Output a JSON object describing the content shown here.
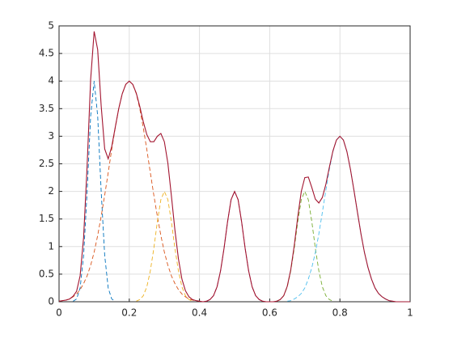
{
  "chart_data": {
    "type": "line",
    "xlim": [
      0,
      1
    ],
    "ylim": [
      0,
      5
    ],
    "xticks": [
      0,
      0.2,
      0.4,
      0.6,
      0.8,
      1
    ],
    "yticks": [
      0,
      0.5,
      1,
      1.5,
      2,
      2.5,
      3,
      3.5,
      4,
      4.5,
      5
    ],
    "grid": true,
    "series": [
      {
        "color": "#0072bd",
        "linestyle": "dashed",
        "x": [
          0.04,
          0.05,
          0.06,
          0.07,
          0.08,
          0.09,
          0.1,
          0.11,
          0.12,
          0.13,
          0.14,
          0.15,
          0.16
        ],
        "values": [
          0.01,
          0.05,
          0.25,
          0.84,
          2.0,
          3.37,
          4,
          3.37,
          2.0,
          0.84,
          0.25,
          0.05,
          0.01
        ]
      },
      {
        "color": "#d95319",
        "linestyle": "dashed",
        "x": [
          0,
          0.01,
          0.02,
          0.03,
          0.04,
          0.05,
          0.06,
          0.07,
          0.08,
          0.09,
          0.1,
          0.11,
          0.12,
          0.13,
          0.14,
          0.15,
          0.16,
          0.17,
          0.18,
          0.19,
          0.2,
          0.21,
          0.22,
          0.23,
          0.24,
          0.25,
          0.26,
          0.27,
          0.28,
          0.29,
          0.3,
          0.31,
          0.32,
          0.33,
          0.34,
          0.35,
          0.36,
          0.37,
          0.38,
          0.39,
          0.4
        ],
        "values": [
          0.01,
          0.02,
          0.03,
          0.05,
          0.09,
          0.14,
          0.22,
          0.33,
          0.47,
          0.66,
          0.9,
          1.2,
          1.55,
          1.93,
          2.34,
          2.76,
          3.15,
          3.5,
          3.77,
          3.94,
          4,
          3.94,
          3.77,
          3.5,
          3.15,
          2.76,
          2.34,
          1.93,
          1.55,
          1.2,
          0.9,
          0.66,
          0.47,
          0.33,
          0.22,
          0.14,
          0.09,
          0.05,
          0.03,
          0.02,
          0.01
        ]
      },
      {
        "color": "#edb120",
        "linestyle": "dashed",
        "x": [
          0.22,
          0.23,
          0.24,
          0.25,
          0.26,
          0.27,
          0.28,
          0.29,
          0.3,
          0.31,
          0.32,
          0.33,
          0.34,
          0.35,
          0.36,
          0.37,
          0.38
        ],
        "values": [
          0.01,
          0.04,
          0.11,
          0.27,
          0.56,
          0.97,
          1.45,
          1.85,
          2,
          1.85,
          1.45,
          0.97,
          0.56,
          0.27,
          0.11,
          0.04,
          0.01
        ]
      },
      {
        "color": "#7e2f8e",
        "linestyle": "dashed",
        "x": [
          0.42,
          0.43,
          0.44,
          0.45,
          0.46,
          0.47,
          0.48,
          0.49,
          0.5,
          0.51,
          0.52,
          0.53,
          0.54,
          0.55,
          0.56,
          0.57,
          0.58
        ],
        "values": [
          0.01,
          0.04,
          0.11,
          0.27,
          0.56,
          0.97,
          1.45,
          1.85,
          2,
          1.85,
          1.45,
          0.97,
          0.56,
          0.27,
          0.11,
          0.04,
          0.01
        ]
      },
      {
        "color": "#77ac30",
        "linestyle": "dashed",
        "x": [
          0.62,
          0.63,
          0.64,
          0.65,
          0.66,
          0.67,
          0.68,
          0.69,
          0.7,
          0.71,
          0.72,
          0.73,
          0.74,
          0.75,
          0.76,
          0.77,
          0.78
        ],
        "values": [
          0.01,
          0.04,
          0.11,
          0.27,
          0.56,
          0.97,
          1.45,
          1.85,
          2,
          1.85,
          1.45,
          0.97,
          0.56,
          0.27,
          0.11,
          0.04,
          0.01
        ]
      },
      {
        "color": "#4dbeee",
        "linestyle": "dashed",
        "x": [
          0.65,
          0.66,
          0.67,
          0.68,
          0.69,
          0.7,
          0.71,
          0.72,
          0.73,
          0.74,
          0.75,
          0.76,
          0.77,
          0.78,
          0.79,
          0.8,
          0.81,
          0.82,
          0.83,
          0.84,
          0.85,
          0.86,
          0.87,
          0.88,
          0.89,
          0.9,
          0.91,
          0.92,
          0.93,
          0.94,
          0.95
        ],
        "values": [
          0.01,
          0.02,
          0.05,
          0.09,
          0.15,
          0.25,
          0.41,
          0.62,
          0.89,
          1.23,
          1.62,
          2.02,
          2.4,
          2.72,
          2.93,
          3,
          2.93,
          2.72,
          2.4,
          2.02,
          1.62,
          1.23,
          0.89,
          0.62,
          0.41,
          0.25,
          0.15,
          0.09,
          0.05,
          0.02,
          0.01
        ]
      },
      {
        "color": "#a2142f",
        "linestyle": "solid",
        "x": [
          0,
          0.01,
          0.02,
          0.03,
          0.04,
          0.05,
          0.06,
          0.07,
          0.08,
          0.09,
          0.1,
          0.11,
          0.12,
          0.13,
          0.14,
          0.15,
          0.16,
          0.17,
          0.18,
          0.19,
          0.2,
          0.21,
          0.22,
          0.23,
          0.24,
          0.25,
          0.26,
          0.27,
          0.28,
          0.29,
          0.3,
          0.31,
          0.32,
          0.33,
          0.34,
          0.35,
          0.36,
          0.37,
          0.38,
          0.39,
          0.4,
          0.41,
          0.42,
          0.43,
          0.44,
          0.45,
          0.46,
          0.47,
          0.48,
          0.49,
          0.5,
          0.51,
          0.52,
          0.53,
          0.54,
          0.55,
          0.56,
          0.57,
          0.58,
          0.59,
          0.6,
          0.61,
          0.62,
          0.63,
          0.64,
          0.65,
          0.66,
          0.67,
          0.68,
          0.69,
          0.7,
          0.71,
          0.72,
          0.73,
          0.74,
          0.75,
          0.76,
          0.77,
          0.78,
          0.79,
          0.8,
          0.81,
          0.82,
          0.83,
          0.84,
          0.85,
          0.86,
          0.87,
          0.88,
          0.89,
          0.9,
          0.91,
          0.92,
          0.93,
          0.94,
          0.95,
          0.96,
          0.97,
          0.98,
          0.99,
          1
        ],
        "values": [
          0.01,
          0.02,
          0.03,
          0.05,
          0.1,
          0.19,
          0.47,
          1.17,
          2.47,
          4.03,
          4.9,
          4.57,
          3.55,
          2.77,
          2.59,
          2.81,
          3.16,
          3.5,
          3.77,
          3.94,
          4,
          3.94,
          3.78,
          3.54,
          3.26,
          3.03,
          2.9,
          2.9,
          3,
          3.05,
          2.9,
          2.51,
          1.92,
          1.3,
          0.78,
          0.41,
          0.2,
          0.09,
          0.04,
          0.02,
          0.01,
          0,
          0.01,
          0.04,
          0.11,
          0.27,
          0.56,
          0.97,
          1.45,
          1.85,
          2,
          1.85,
          1.45,
          0.97,
          0.56,
          0.27,
          0.11,
          0.04,
          0.01,
          0,
          0,
          0,
          0.01,
          0.04,
          0.11,
          0.28,
          0.58,
          1.02,
          1.54,
          2,
          2.25,
          2.26,
          2.07,
          1.86,
          1.79,
          1.89,
          2.13,
          2.44,
          2.73,
          2.93,
          3,
          2.93,
          2.72,
          2.4,
          2.02,
          1.62,
          1.23,
          0.89,
          0.62,
          0.41,
          0.25,
          0.15,
          0.09,
          0.05,
          0.02,
          0.01,
          0,
          0,
          0,
          0,
          0
        ]
      }
    ]
  }
}
